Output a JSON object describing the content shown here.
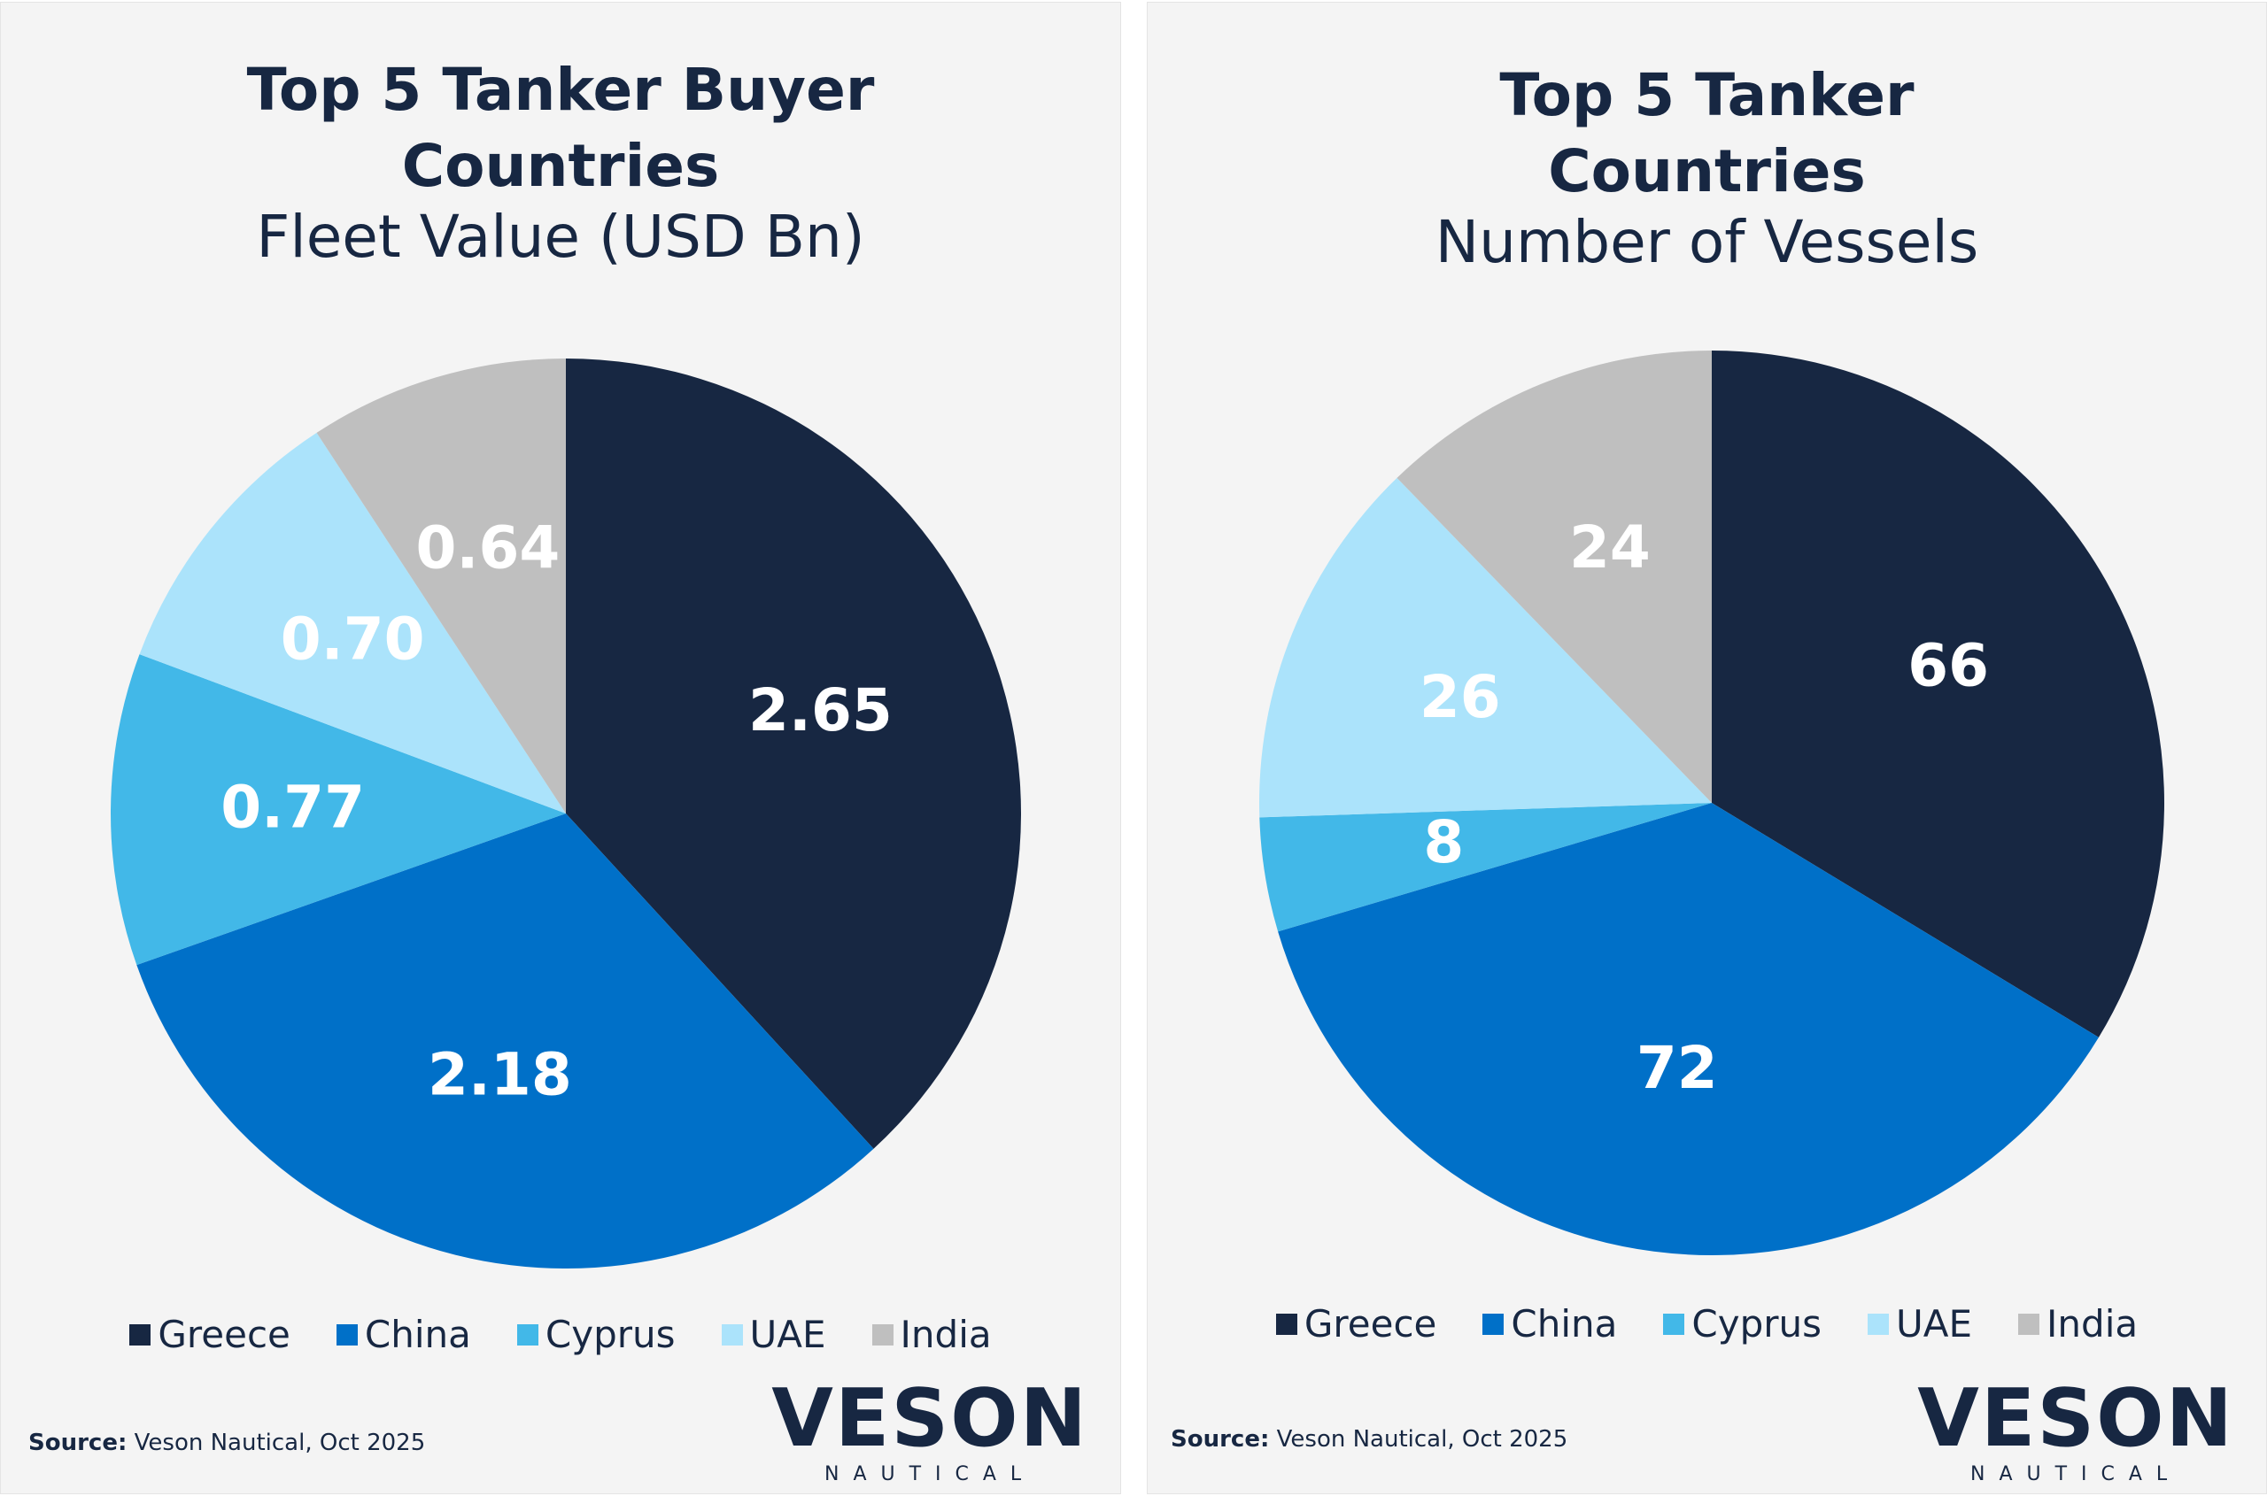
{
  "chart_data": [
    {
      "type": "pie",
      "title": "Top 5 Tanker Buyer Countries",
      "subtitle": "Fleet Value (USD Bn)",
      "categories": [
        "Greece",
        "China",
        "Cyprus",
        "UAE",
        "India"
      ],
      "values": [
        2.65,
        2.18,
        0.77,
        0.7,
        0.64
      ],
      "value_labels": [
        "2.65",
        "2.18",
        "0.77",
        "0.70",
        "0.64"
      ],
      "colors": [
        "#172742",
        "#0070c8",
        "#42b8e8",
        "#abe3fb",
        "#bfbfbf"
      ],
      "source_label": "Source:",
      "source": "Veson Nautical, Oct 2025"
    },
    {
      "type": "pie",
      "title": "Top 5 Tanker Countries",
      "subtitle": "Number of Vessels",
      "categories": [
        "Greece",
        "China",
        "Cyprus",
        "UAE",
        "India"
      ],
      "values": [
        66,
        72,
        8,
        26,
        24
      ],
      "colors": [
        "#172742",
        "#0070c8",
        "#42b8e8",
        "#abe3fb",
        "#bfbfbf"
      ],
      "source_label": "Source:",
      "source": "Veson Nautical, Oct 2025"
    }
  ],
  "logo": {
    "name": "VESON",
    "tagline": "NAUTICAL"
  }
}
